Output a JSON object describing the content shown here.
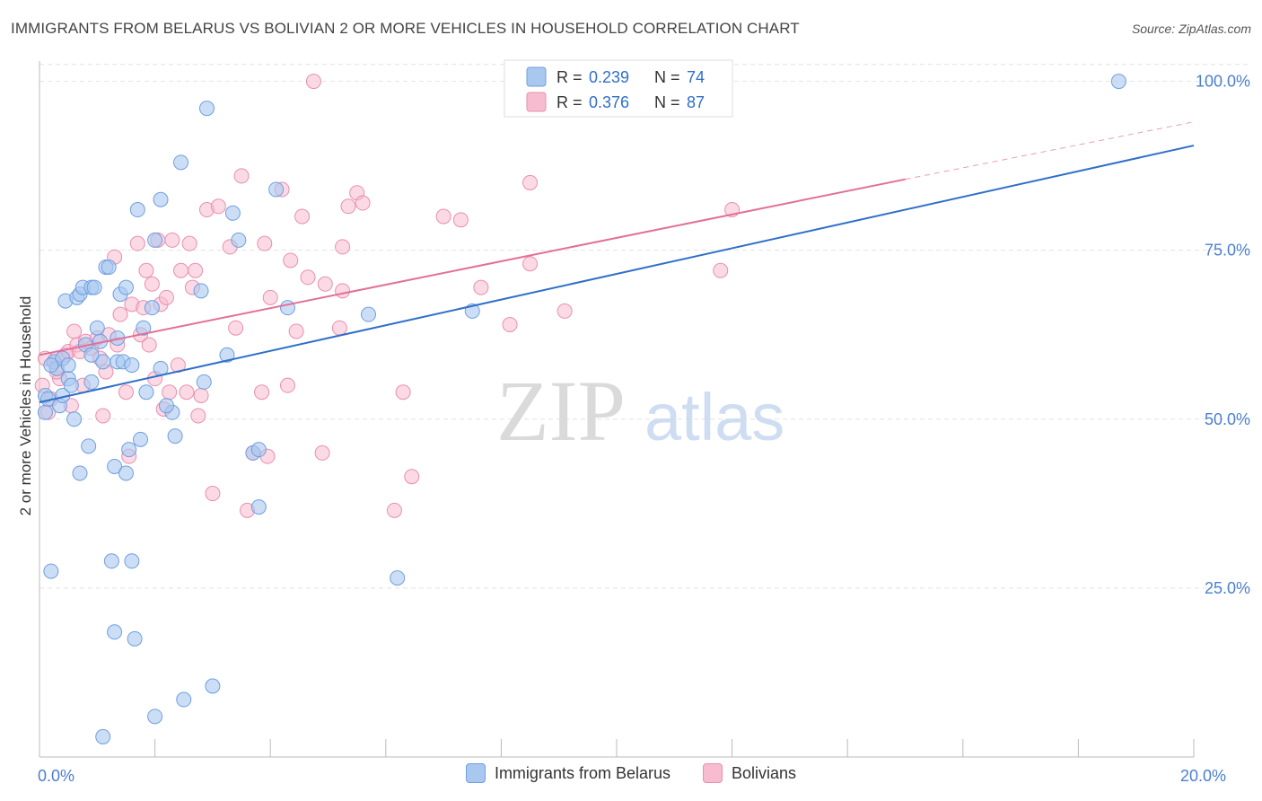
{
  "title": "IMMIGRANTS FROM BELARUS VS BOLIVIAN 2 OR MORE VEHICLES IN HOUSEHOLD CORRELATION CHART",
  "source": "Source: ZipAtlas.com",
  "watermark": {
    "zip": "ZIP",
    "atlas": "atlas"
  },
  "colors": {
    "blue_fill": "#a9c8f0",
    "blue_stroke": "#6f9fde",
    "blue_line": "#2f6fc9",
    "pink_fill": "#f7bcd0",
    "pink_stroke": "#e98fae",
    "pink_line": "#e36f97",
    "tick_label": "#4a7fd0",
    "grid": "#dddddd"
  },
  "legend_top": [
    {
      "r_label": "R =",
      "r_value": "0.239",
      "n_label": "N =",
      "n_value": "74"
    },
    {
      "r_label": "R =",
      "r_value": "0.376",
      "n_label": "N =",
      "n_value": "87"
    }
  ],
  "legend_bottom": [
    "Immigrants from Belarus",
    "Bolivians"
  ],
  "chart_data": {
    "type": "scatter",
    "title": "IMMIGRANTS FROM BELARUS VS BOLIVIAN 2 OR MORE VEHICLES IN HOUSEHOLD CORRELATION CHART",
    "xlabel": "",
    "ylabel": "2 or more Vehicles in Household",
    "xlim": [
      0,
      20
    ],
    "ylim": [
      0,
      103
    ],
    "x_tick_labels": [
      {
        "value": 0,
        "label": "0.0%"
      },
      {
        "value": 20,
        "label": "20.0%"
      }
    ],
    "y_tick_labels": [
      {
        "value": 25,
        "label": "25.0%"
      },
      {
        "value": 50,
        "label": "50.0%"
      },
      {
        "value": 75,
        "label": "75.0%"
      },
      {
        "value": 100,
        "label": "100.0%"
      }
    ],
    "grid": "horizontal dashed",
    "legend_position": "top-center",
    "series": [
      {
        "name": "Immigrants from Belarus",
        "color": "#a9c8f0",
        "trend": {
          "x": [
            0,
            20
          ],
          "y": [
            52.5,
            90.5
          ]
        },
        "points": [
          [
            0.1,
            53.5
          ],
          [
            0.1,
            51
          ],
          [
            0.15,
            53
          ],
          [
            0.2,
            27.5
          ],
          [
            0.25,
            58.5
          ],
          [
            0.3,
            57.5
          ],
          [
            0.35,
            52
          ],
          [
            0.4,
            53.5
          ],
          [
            0.4,
            59
          ],
          [
            0.45,
            67.5
          ],
          [
            0.5,
            56
          ],
          [
            0.55,
            55
          ],
          [
            0.6,
            50
          ],
          [
            0.65,
            68
          ],
          [
            0.7,
            68.5
          ],
          [
            0.7,
            42
          ],
          [
            0.75,
            69.5
          ],
          [
            0.8,
            61
          ],
          [
            0.85,
            46
          ],
          [
            0.9,
            69.5
          ],
          [
            0.9,
            55.5
          ],
          [
            0.95,
            69.5
          ],
          [
            1.0,
            63.5
          ],
          [
            1.05,
            61.5
          ],
          [
            1.1,
            58.5
          ],
          [
            1.15,
            72.5
          ],
          [
            1.2,
            72.5
          ],
          [
            1.25,
            29
          ],
          [
            1.3,
            18.5
          ],
          [
            1.3,
            43
          ],
          [
            1.35,
            58.5
          ],
          [
            1.4,
            68.5
          ],
          [
            1.45,
            58.5
          ],
          [
            1.5,
            69.5
          ],
          [
            1.55,
            45.5
          ],
          [
            1.6,
            29
          ],
          [
            1.6,
            58
          ],
          [
            1.65,
            17.5
          ],
          [
            1.7,
            81
          ],
          [
            1.75,
            47
          ],
          [
            1.8,
            63.5
          ],
          [
            1.85,
            54
          ],
          [
            1.95,
            66.5
          ],
          [
            2.0,
            6
          ],
          [
            2.0,
            76.5
          ],
          [
            2.1,
            82.5
          ],
          [
            2.1,
            57.5
          ],
          [
            2.3,
            51
          ],
          [
            2.35,
            47.5
          ],
          [
            2.45,
            88
          ],
          [
            2.5,
            8.5
          ],
          [
            2.8,
            69
          ],
          [
            2.85,
            55.5
          ],
          [
            2.9,
            96
          ],
          [
            3.0,
            10.5
          ],
          [
            3.25,
            59.5
          ],
          [
            3.35,
            80.5
          ],
          [
            3.45,
            76.5
          ],
          [
            3.7,
            45
          ],
          [
            3.8,
            45.5
          ],
          [
            3.8,
            37
          ],
          [
            4.1,
            84
          ],
          [
            4.3,
            66.5
          ],
          [
            5.7,
            65.5
          ],
          [
            6.2,
            26.5
          ],
          [
            7.5,
            66
          ],
          [
            1.1,
            3
          ],
          [
            1.5,
            42
          ],
          [
            0.2,
            58
          ],
          [
            0.5,
            58
          ],
          [
            0.9,
            59.5
          ],
          [
            1.35,
            62
          ],
          [
            2.2,
            52
          ],
          [
            18.7,
            100
          ]
        ]
      },
      {
        "name": "Bolivians",
        "color": "#f7bcd0",
        "trend": {
          "x": [
            0,
            15
          ],
          "y": [
            59.5,
            85.5
          ]
        },
        "trend_dashed": {
          "x": [
            15,
            20
          ],
          "y": [
            85.5,
            94
          ]
        },
        "points": [
          [
            0.05,
            55
          ],
          [
            0.1,
            59
          ],
          [
            0.15,
            51
          ],
          [
            0.2,
            53
          ],
          [
            0.3,
            59
          ],
          [
            0.35,
            56
          ],
          [
            0.45,
            59.5
          ],
          [
            0.5,
            60
          ],
          [
            0.55,
            52
          ],
          [
            0.6,
            63
          ],
          [
            0.65,
            61
          ],
          [
            0.75,
            55
          ],
          [
            0.8,
            61.5
          ],
          [
            0.9,
            60.5
          ],
          [
            1.0,
            62
          ],
          [
            1.1,
            50.5
          ],
          [
            1.15,
            57
          ],
          [
            1.2,
            62.5
          ],
          [
            1.3,
            74
          ],
          [
            1.35,
            61
          ],
          [
            1.4,
            65.5
          ],
          [
            1.5,
            54
          ],
          [
            1.55,
            44.5
          ],
          [
            1.6,
            67
          ],
          [
            1.7,
            76
          ],
          [
            1.75,
            62.5
          ],
          [
            1.8,
            66.5
          ],
          [
            1.85,
            72
          ],
          [
            1.9,
            61
          ],
          [
            1.95,
            70
          ],
          [
            2.0,
            56
          ],
          [
            2.05,
            76.5
          ],
          [
            2.1,
            67
          ],
          [
            2.2,
            68
          ],
          [
            2.25,
            54
          ],
          [
            2.3,
            76.5
          ],
          [
            2.4,
            58
          ],
          [
            2.45,
            72
          ],
          [
            2.55,
            54
          ],
          [
            2.6,
            76
          ],
          [
            2.65,
            69.5
          ],
          [
            2.7,
            72
          ],
          [
            2.75,
            50.5
          ],
          [
            2.8,
            53.5
          ],
          [
            2.9,
            81
          ],
          [
            3.0,
            39
          ],
          [
            3.1,
            81.5
          ],
          [
            3.3,
            75.5
          ],
          [
            3.4,
            63.5
          ],
          [
            3.5,
            86
          ],
          [
            3.6,
            36.5
          ],
          [
            3.7,
            45
          ],
          [
            3.85,
            54
          ],
          [
            3.9,
            76
          ],
          [
            3.95,
            44.5
          ],
          [
            4.0,
            68
          ],
          [
            4.2,
            84
          ],
          [
            4.3,
            55
          ],
          [
            4.35,
            73.5
          ],
          [
            4.45,
            63
          ],
          [
            4.55,
            80
          ],
          [
            4.65,
            71
          ],
          [
            4.75,
            100
          ],
          [
            4.9,
            45
          ],
          [
            4.95,
            70
          ],
          [
            5.2,
            63.5
          ],
          [
            5.25,
            75.5
          ],
          [
            5.25,
            69
          ],
          [
            5.35,
            81.5
          ],
          [
            5.5,
            83.5
          ],
          [
            5.6,
            82
          ],
          [
            6.15,
            36.5
          ],
          [
            6.3,
            54
          ],
          [
            6.45,
            41.5
          ],
          [
            7.0,
            80
          ],
          [
            7.3,
            79.5
          ],
          [
            7.65,
            69.5
          ],
          [
            8.15,
            64
          ],
          [
            8.5,
            85
          ],
          [
            8.5,
            73
          ],
          [
            9.1,
            66
          ],
          [
            11.8,
            72
          ],
          [
            12.0,
            81
          ],
          [
            0.3,
            57
          ],
          [
            0.7,
            60
          ],
          [
            1.05,
            59
          ],
          [
            2.15,
            51.5
          ]
        ]
      }
    ]
  }
}
